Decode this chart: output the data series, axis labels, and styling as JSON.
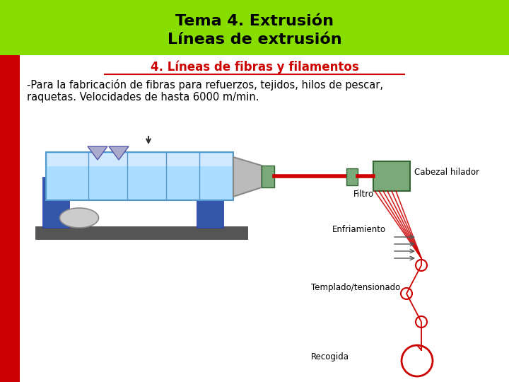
{
  "title_line1": "Tema 4. Extrusión",
  "title_line2": "Líneas de extrusión",
  "title_bg": "#88dd00",
  "title_color": "#000000",
  "left_bar_color": "#cc0000",
  "slide_bg": "#ffffff",
  "section_title": "4. Líneas de fibras y filamentos",
  "section_title_color": "#cc0000",
  "body_text_line1": "-Para la fabricación de fibras para refuerzos, tejidos, hilos de pescar,",
  "body_text_line2": "raquetas. Velocidades de hasta 6000 m/min.",
  "body_text_color": "#000000",
  "label_cabezal": "Cabezal hilador",
  "label_filtro": "Filtro",
  "label_enfriamiento": "Enfriamiento",
  "label_templado": "Templado/tensionado",
  "label_recogida": "Recogida",
  "barrel_color": "#aaddff",
  "barrel_edge": "#5599cc",
  "pillar_color": "#3355aa",
  "pillar_edge": "#2233aa",
  "base_color": "#555555",
  "nozzle_color": "#bbbbbb",
  "nozzle_edge": "#888888",
  "green_block": "#7aaa7a",
  "green_block_edge": "#336633",
  "red_line": "#cc0000",
  "hopper_color": "#aaaacc",
  "hopper_edge": "#5555aa",
  "motor_color": "#cccccc",
  "motor_edge": "#888888"
}
